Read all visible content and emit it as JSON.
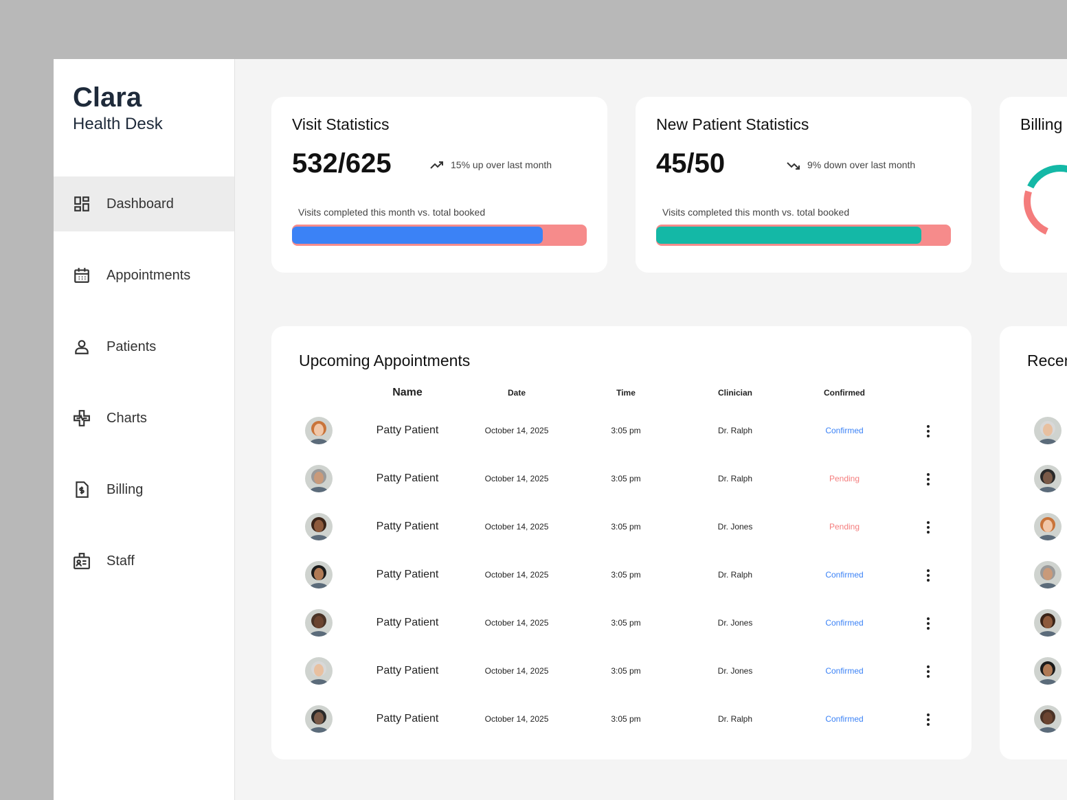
{
  "brand": {
    "name": "Clara",
    "tagline": "Health Desk"
  },
  "nav": [
    {
      "label": "Dashboard",
      "active": true
    },
    {
      "label": "Appointments",
      "active": false
    },
    {
      "label": "Patients",
      "active": false
    },
    {
      "label": "Charts",
      "active": false
    },
    {
      "label": "Billing",
      "active": false
    },
    {
      "label": "Staff",
      "active": false
    }
  ],
  "stats": [
    {
      "title": "Visit Statistics",
      "value": "532/625",
      "trend": "15% up over last month",
      "caption": "Visits completed this month vs. total booked",
      "color": "#3b82f6"
    },
    {
      "title": "New Patient Statistics",
      "value": "45/50",
      "trend": "9% down over last month",
      "caption": "Visits completed this month vs. total booked",
      "color": "#14b8a6"
    }
  ],
  "billing": {
    "title": "Billing"
  },
  "appointments": {
    "title": "Upcoming Appointments",
    "columns": [
      "Name",
      "Date",
      "Time",
      "Clinician",
      "Confirmed"
    ],
    "status_colors": {
      "Confirmed": "#3b82f6",
      "Pending": "#f47c7c"
    },
    "rows": [
      {
        "name": "Patty Patient",
        "date": "October 14, 2025",
        "time": "3:05 pm",
        "clinician": "Dr. Ralph",
        "status": "Confirmed"
      },
      {
        "name": "Patty Patient",
        "date": "October 14, 2025",
        "time": "3:05 pm",
        "clinician": "Dr. Ralph",
        "status": "Pending"
      },
      {
        "name": "Patty Patient",
        "date": "October 14, 2025",
        "time": "3:05 pm",
        "clinician": "Dr. Jones",
        "status": "Pending"
      },
      {
        "name": "Patty Patient",
        "date": "October 14, 2025",
        "time": "3:05 pm",
        "clinician": "Dr. Ralph",
        "status": "Confirmed"
      },
      {
        "name": "Patty Patient",
        "date": "October 14, 2025",
        "time": "3:05 pm",
        "clinician": "Dr. Jones",
        "status": "Confirmed"
      },
      {
        "name": "Patty Patient",
        "date": "October 14, 2025",
        "time": "3:05 pm",
        "clinician": "Dr. Jones",
        "status": "Confirmed"
      },
      {
        "name": "Patty Patient",
        "date": "October 14, 2025",
        "time": "3:05 pm",
        "clinician": "Dr. Ralph",
        "status": "Confirmed"
      }
    ]
  },
  "recent": {
    "title": "Recen"
  }
}
